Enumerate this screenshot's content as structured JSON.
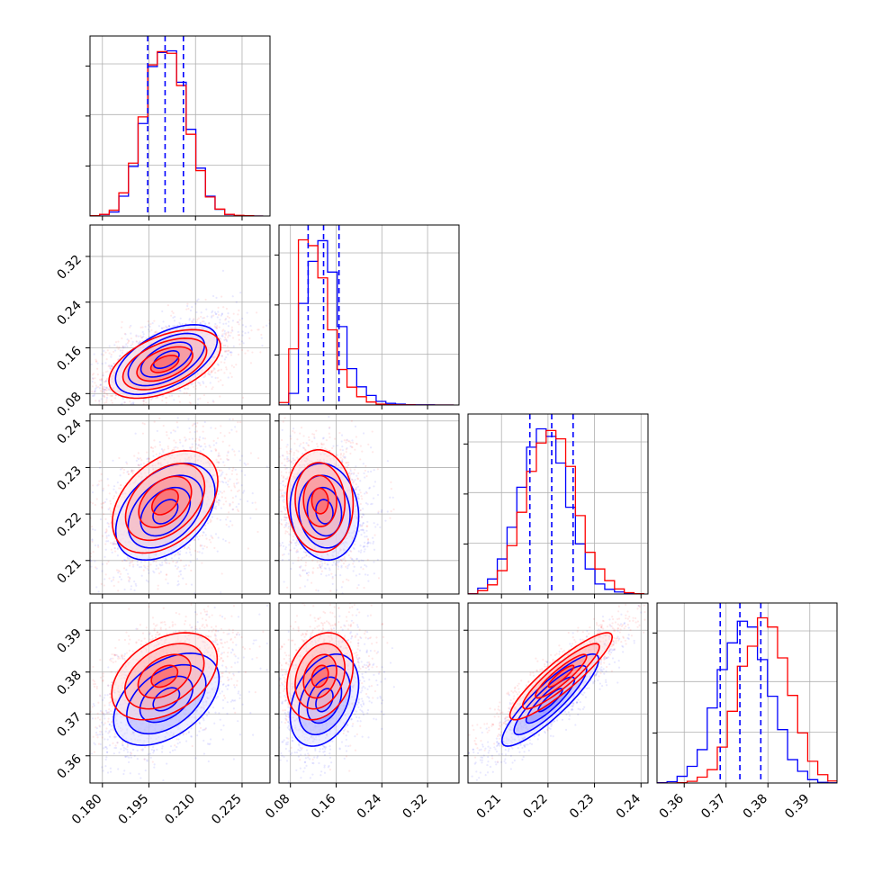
{
  "chart_data": {
    "type": "corner",
    "grid": true,
    "series": [
      {
        "name": "",
        "color": "#0000ff"
      },
      {
        "name": "",
        "color": "#ff0000"
      }
    ],
    "quantile_line_color": "#0000ff",
    "params": [
      {
        "range": [
          0.176,
          0.234
        ],
        "ticks": [
          0.18,
          0.195,
          0.21,
          0.225
        ],
        "tick_labels": [
          "0.180",
          "0.195",
          "0.210",
          "0.225"
        ]
      },
      {
        "range": [
          0.06,
          0.375
        ],
        "ticks": [
          0.08,
          0.16,
          0.24,
          0.32
        ],
        "tick_labels": [
          "0.08",
          "0.16",
          "0.24",
          "0.32"
        ]
      },
      {
        "range": [
          0.2028,
          0.2415
        ],
        "ticks": [
          0.21,
          0.22,
          0.23,
          0.24
        ],
        "tick_labels": [
          "0.21",
          "0.22",
          "0.23",
          "0.24"
        ]
      },
      {
        "range": [
          0.3535,
          0.3965
        ],
        "ticks": [
          0.36,
          0.37,
          0.38,
          0.39
        ],
        "tick_labels": [
          "0.36",
          "0.37",
          "0.38",
          "0.39"
        ]
      }
    ],
    "histograms": [
      {
        "bin_edges": [
          0.176,
          0.1791,
          0.1822,
          0.1853,
          0.1884,
          0.1915,
          0.1946,
          0.1977,
          0.2008,
          0.2039,
          0.207,
          0.2101,
          0.2132,
          0.2163,
          0.2194,
          0.2225,
          0.2256,
          0.2287,
          0.2318
        ],
        "series": [
          {
            "values": [
              2,
              8,
              24,
              120,
              300,
              560,
              905,
              990,
              1000,
              810,
              525,
              290,
              120,
              40,
              8,
              2,
              2,
              0
            ]
          },
          {
            "values": [
              2,
              10,
              35,
              140,
              320,
              600,
              915,
              995,
              985,
              790,
              495,
              275,
              115,
              42,
              10,
              4,
              2,
              0
            ]
          }
        ],
        "quantiles": [
          0.1946,
          0.2002,
          0.2061
        ]
      },
      {
        "bin_edges": [
          0.06,
          0.077,
          0.094,
          0.111,
          0.128,
          0.145,
          0.162,
          0.179,
          0.196,
          0.213,
          0.23,
          0.247,
          0.264,
          0.281,
          0.298,
          0.315,
          0.332,
          0.349,
          0.366
        ],
        "series": [
          {
            "values": [
              0,
              70,
              615,
              870,
              995,
              805,
              475,
              220,
              110,
              58,
              22,
              10,
              5,
              2,
              1,
              1,
              0,
              0
            ]
          },
          {
            "values": [
              15,
              340,
              1000,
              965,
              770,
              455,
              215,
              108,
              50,
              18,
              5,
              2,
              1,
              1,
              0,
              0,
              0,
              0
            ]
          }
        ],
        "quantiles": [
          0.111,
          0.138,
          0.165
        ]
      },
      {
        "bin_edges": [
          0.2028,
          0.2049,
          0.207,
          0.2091,
          0.2112,
          0.2133,
          0.2154,
          0.2175,
          0.2196,
          0.2217,
          0.2238,
          0.2259,
          0.228,
          0.2301,
          0.2322,
          0.2343,
          0.2364,
          0.2385,
          0.2406
        ],
        "series": [
          {
            "values": [
              2,
              35,
              90,
              210,
              400,
              640,
              880,
              990,
              945,
              785,
              520,
              300,
              150,
              60,
              28,
              12,
              3,
              1
            ]
          },
          {
            "values": [
              1,
              20,
              55,
              140,
              290,
              490,
              735,
              905,
              980,
              930,
              765,
              470,
              250,
              150,
              80,
              30,
              8,
              2
            ]
          }
        ],
        "quantiles": [
          0.2161,
          0.2208,
          0.2254
        ]
      },
      {
        "bin_edges": [
          0.3535,
          0.3559,
          0.3583,
          0.3607,
          0.3631,
          0.3655,
          0.3679,
          0.3703,
          0.3727,
          0.3751,
          0.3775,
          0.3799,
          0.3823,
          0.3847,
          0.3871,
          0.3895,
          0.3919,
          0.3943,
          0.3967
        ],
        "series": [
          {
            "values": [
              2,
              8,
              40,
              100,
              200,
              450,
              680,
              840,
              970,
              935,
              740,
              520,
              320,
              140,
              70,
              20,
              4,
              1
            ]
          },
          {
            "values": [
              0,
              0,
              2,
              10,
              35,
              80,
              215,
              430,
              700,
              820,
              990,
              935,
              750,
              525,
              300,
              130,
              50,
              12
            ]
          }
        ],
        "quantiles": [
          0.3686,
          0.3733,
          0.3783
        ]
      }
    ],
    "pairs": [
      {
        "x_param": 0,
        "y_param": 1,
        "series": [
          {
            "mean": [
              0.2006,
              0.1395
            ],
            "sd": [
              0.0082,
              0.0305
            ],
            "rho": 0.55
          },
          {
            "mean": [
              0.2001,
              0.1318
            ],
            "sd": [
              0.009,
              0.03
            ],
            "rho": 0.5
          }
        ]
      },
      {
        "x_param": 0,
        "y_param": 2,
        "series": [
          {
            "mean": [
              0.2003,
              0.2205
            ],
            "sd": [
              0.008,
              0.0052
            ],
            "rho": 0.4
          },
          {
            "mean": [
              0.2002,
              0.2226
            ],
            "sd": [
              0.0085,
              0.0055
            ],
            "rho": 0.4
          }
        ]
      },
      {
        "x_param": 1,
        "y_param": 2,
        "series": [
          {
            "mean": [
              0.1395,
              0.2205
            ],
            "sd": [
              0.03,
              0.0052
            ],
            "rho": -0.1
          },
          {
            "mean": [
              0.1318,
              0.2228
            ],
            "sd": [
              0.029,
              0.0055
            ],
            "rho": -0.05
          }
        ]
      },
      {
        "x_param": 0,
        "y_param": 3,
        "series": [
          {
            "mean": [
              0.2006,
              0.3735
            ],
            "sd": [
              0.0085,
              0.0055
            ],
            "rho": 0.45
          },
          {
            "mean": [
              0.2,
              0.379
            ],
            "sd": [
              0.0085,
              0.0052
            ],
            "rho": 0.4
          }
        ]
      },
      {
        "x_param": 1,
        "y_param": 3,
        "series": [
          {
            "mean": [
              0.1395,
              0.3733
            ],
            "sd": [
              0.03,
              0.0055
            ],
            "rho": 0.35
          },
          {
            "mean": [
              0.1318,
              0.379
            ],
            "sd": [
              0.029,
              0.0052
            ],
            "rho": 0.25
          }
        ]
      },
      {
        "x_param": 2,
        "y_param": 3,
        "series": [
          {
            "mean": [
              0.2205,
              0.3733
            ],
            "sd": [
              0.0052,
              0.0055
            ],
            "rho": 0.88
          },
          {
            "mean": [
              0.2228,
              0.379
            ],
            "sd": [
              0.0055,
              0.0052
            ],
            "rho": 0.9
          }
        ]
      }
    ]
  }
}
